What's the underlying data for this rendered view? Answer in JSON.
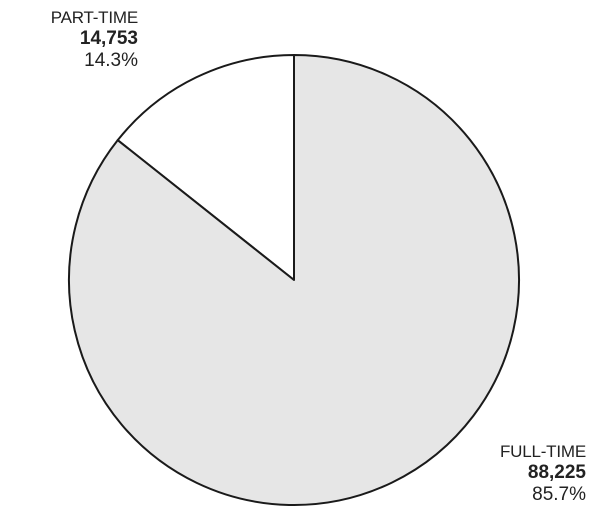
{
  "chart_data": {
    "type": "pie",
    "title": "",
    "slices": [
      {
        "label": "PART-TIME",
        "value": 14753,
        "value_label": "14,753",
        "percent_label": "14.3%",
        "color": "#ffffff"
      },
      {
        "label": "FULL-TIME",
        "value": 88225,
        "value_label": "88,225",
        "percent_label": "85.7%",
        "color": "#e6e6e6"
      }
    ],
    "start": "top",
    "direction": "counterclockwise",
    "stroke_color": "#1a1a1a"
  }
}
